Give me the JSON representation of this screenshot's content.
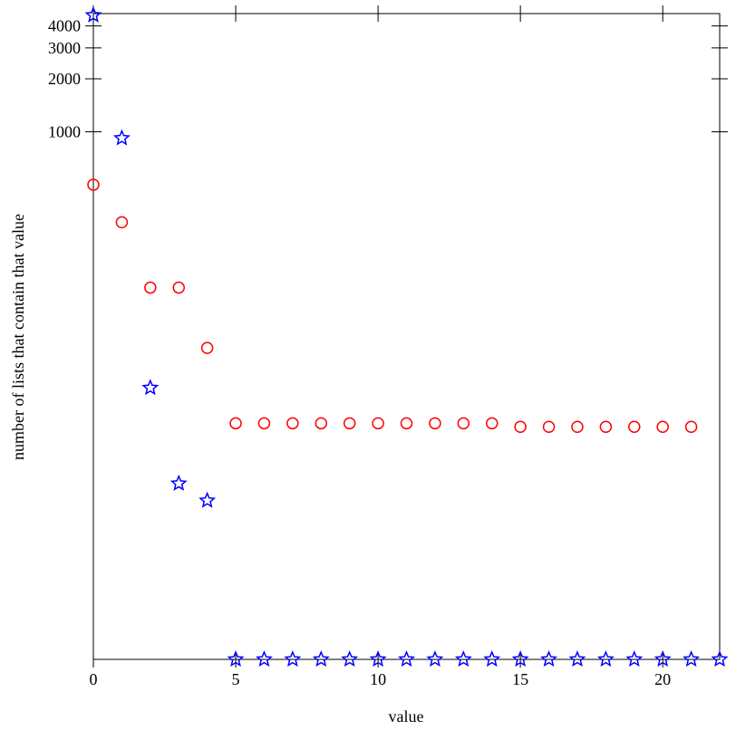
{
  "chart_data": {
    "type": "scatter",
    "x_label": "value",
    "y_label": "number of lists that contain that value",
    "xlim": [
      0,
      22
    ],
    "xticks": [
      0,
      5,
      10,
      15,
      20
    ],
    "ylim": [
      1,
      4700
    ],
    "yticks": [
      1000,
      2000,
      3000,
      4000
    ],
    "log_y": true,
    "series": [
      {
        "marker": "circle",
        "color": "#ff0000",
        "x": [
          0,
          1,
          2,
          3,
          4,
          5,
          6,
          7,
          8,
          9,
          10,
          11,
          12,
          13,
          14,
          15,
          16,
          17,
          18,
          19,
          20,
          21
        ],
        "values": [
          500,
          306,
          130,
          130,
          59,
          22,
          22,
          22,
          22,
          22,
          22,
          22,
          22,
          22,
          22,
          21,
          21,
          21,
          21,
          21,
          21,
          21
        ]
      },
      {
        "marker": "star",
        "color": "#0000ff",
        "x": [
          0,
          1,
          2,
          3,
          4,
          5,
          6,
          7,
          8,
          9,
          10,
          11,
          12,
          13,
          14,
          15,
          16,
          17,
          18,
          19,
          20,
          21,
          22
        ],
        "values": [
          4600,
          920,
          35,
          10,
          8,
          1,
          1,
          1,
          1,
          1,
          1,
          1,
          1,
          1,
          1,
          1,
          1,
          1,
          1,
          1,
          1,
          1,
          1
        ]
      }
    ]
  }
}
